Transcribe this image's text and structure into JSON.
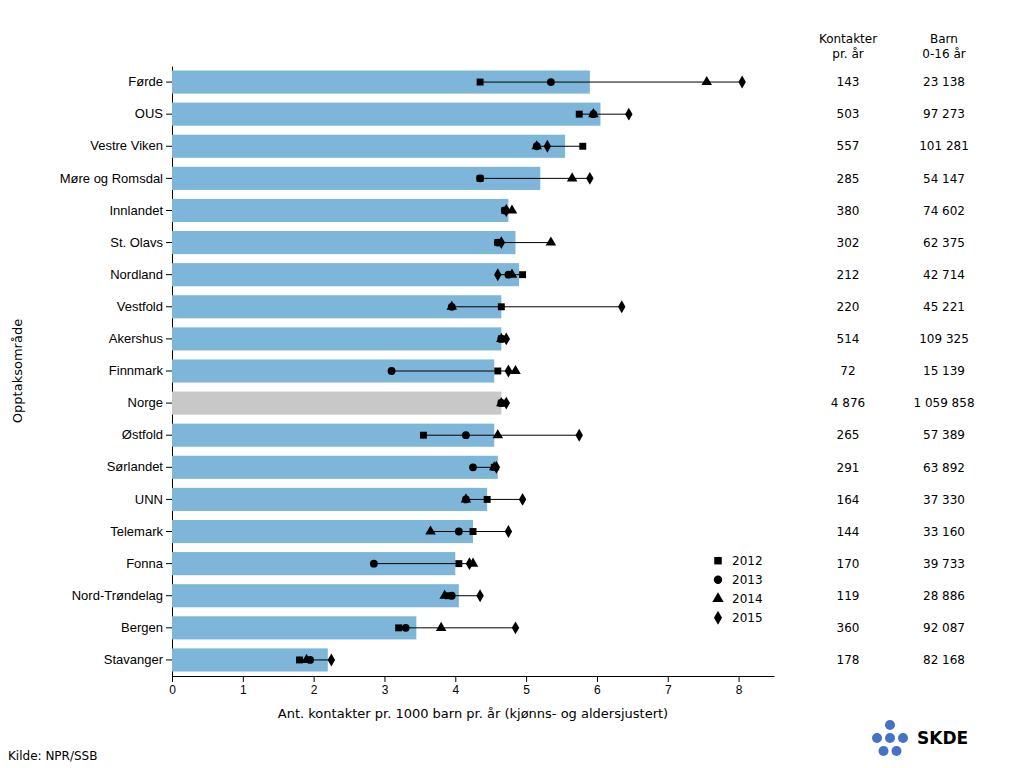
{
  "chart_data": {
    "type": "bar",
    "orientation": "horizontal",
    "categories": [
      "Førde",
      "OUS",
      "Vestre Viken",
      "Møre og Romsdal",
      "Innlandet",
      "St. Olavs",
      "Nordland",
      "Vestfold",
      "Akershus",
      "Finnmark",
      "Norge",
      "Østfold",
      "Sørlandet",
      "UNN",
      "Telemark",
      "Fonna",
      "Nord-Trøndelag",
      "Bergen",
      "Stavanger"
    ],
    "series": [
      {
        "type": "bar",
        "colors": [
          "#7eb6d9",
          "#7eb6d9",
          "#7eb6d9",
          "#7eb6d9",
          "#7eb6d9",
          "#7eb6d9",
          "#7eb6d9",
          "#7eb6d9",
          "#7eb6d9",
          "#7eb6d9",
          "#c8c8c8",
          "#7eb6d9",
          "#7eb6d9",
          "#7eb6d9",
          "#7eb6d9",
          "#7eb6d9",
          "#7eb6d9",
          "#7eb6d9",
          "#7eb6d9"
        ],
        "values": [
          5.9,
          6.05,
          5.55,
          5.2,
          4.75,
          4.85,
          4.9,
          4.65,
          4.65,
          4.55,
          4.65,
          4.55,
          4.6,
          4.45,
          4.25,
          4.0,
          4.05,
          3.45,
          2.2
        ]
      },
      {
        "name": "2012",
        "type": "scatter",
        "marker": "square",
        "color": "#000000",
        "values": [
          4.35,
          5.75,
          5.8,
          4.35,
          4.7,
          4.6,
          4.95,
          4.65,
          4.65,
          4.6,
          4.65,
          3.55,
          4.55,
          4.45,
          4.25,
          4.05,
          3.9,
          3.2,
          1.8
        ]
      },
      {
        "name": "2013",
        "type": "scatter",
        "marker": "circle",
        "color": "#000000",
        "values": [
          5.35,
          5.95,
          5.15,
          4.35,
          4.7,
          4.6,
          4.75,
          3.95,
          4.65,
          3.1,
          4.65,
          4.15,
          4.25,
          4.15,
          4.05,
          2.85,
          3.95,
          3.3,
          1.95
        ]
      },
      {
        "name": "2014",
        "type": "scatter",
        "marker": "triangle",
        "color": "#000000",
        "values": [
          7.55,
          5.95,
          5.15,
          5.65,
          4.8,
          5.35,
          4.8,
          3.95,
          4.65,
          4.85,
          4.65,
          4.6,
          4.55,
          4.15,
          3.65,
          4.25,
          3.85,
          3.8,
          1.9
        ]
      },
      {
        "name": "2015",
        "type": "scatter",
        "marker": "diamond",
        "color": "#000000",
        "values": [
          8.05,
          6.45,
          5.3,
          5.9,
          4.72,
          4.65,
          4.6,
          6.35,
          4.72,
          4.75,
          4.72,
          5.75,
          4.58,
          4.95,
          4.75,
          4.2,
          4.35,
          4.85,
          2.25
        ]
      }
    ],
    "x_label": "Ant.  kontakter pr. 1000 barn pr. år (kjønns- og aldersjustert)",
    "y_label": "Opptaksområde",
    "xlim": [
      0,
      8.5
    ],
    "xticks": [
      0,
      1,
      2,
      3,
      4,
      5,
      6,
      7,
      8
    ],
    "legend": "lower right",
    "grid": false,
    "columns": [
      {
        "header": "Kontakter\npr. år",
        "values": [
          "143",
          "503",
          "557",
          "285",
          "380",
          "302",
          "212",
          "220",
          "514",
          "72",
          "4 876",
          "265",
          "291",
          "164",
          "144",
          "170",
          "119",
          "360",
          "178"
        ]
      },
      {
        "header": "Barn\n0-16 år",
        "values": [
          "23 138",
          "97 273",
          "101 281",
          "54 147",
          "74 602",
          "62 375",
          "42 714",
          "45 221",
          "109 325",
          "15 139",
          "1 059 858",
          "57 389",
          "63 892",
          "37 330",
          "33 160",
          "39 733",
          "28 886",
          "92 087",
          "82 168"
        ]
      }
    ],
    "annotations": [
      {
        "text": "Kilde: NPR/SSB"
      },
      {
        "text": "SKDE",
        "color": "#4472c4"
      }
    ]
  }
}
